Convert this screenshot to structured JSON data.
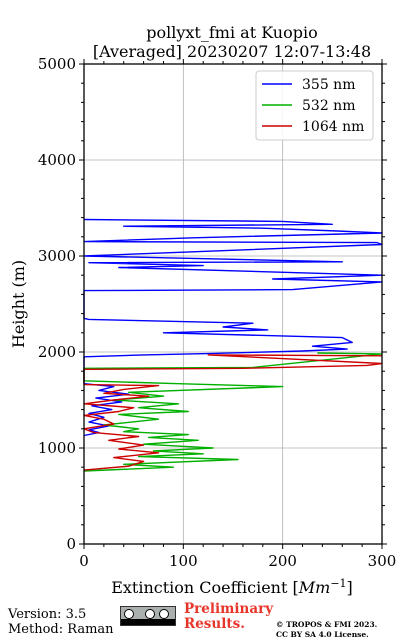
{
  "chart_data": {
    "type": "line",
    "title": [
      "pollyxt_fmi at Kuopio",
      "[Averaged] 20230207 12:07-13:48"
    ],
    "xlabel": "Extinction Coefficient [Mm⁻¹]",
    "xlabel_main": "Extinction Coefficient [",
    "xlabel_unit": "Mm",
    "xlabel_exp": "−1",
    "xlabel_close": "]",
    "ylabel": "Height (m)",
    "xlim": [
      0,
      300
    ],
    "ylim": [
      0,
      5000
    ],
    "xticks": [
      0,
      100,
      200,
      300
    ],
    "yticks": [
      0,
      1000,
      2000,
      3000,
      4000,
      5000
    ],
    "xtick_labels": [
      "0",
      "100",
      "200",
      "300"
    ],
    "ytick_labels": [
      "0",
      "1000",
      "2000",
      "3000",
      "4000",
      "5000"
    ],
    "grid": true,
    "legend_position": "top-right",
    "series": [
      {
        "name": "355 nm",
        "color": "#0000ff",
        "points": [
          [
            0,
            1130
          ],
          [
            15,
            1160
          ],
          [
            5,
            1190
          ],
          [
            25,
            1230
          ],
          [
            5,
            1270
          ],
          [
            20,
            1320
          ],
          [
            5,
            1360
          ],
          [
            28,
            1400
          ],
          [
            8,
            1440
          ],
          [
            38,
            1480
          ],
          [
            12,
            1520
          ],
          [
            45,
            1560
          ],
          [
            15,
            1600
          ],
          [
            30,
            1640
          ],
          [
            0,
            1670
          ],
          [
            0,
            1950
          ],
          [
            60,
            1970
          ],
          [
            130,
            1985
          ],
          [
            220,
            2010
          ],
          [
            265,
            2030
          ],
          [
            230,
            2060
          ],
          [
            270,
            2100
          ],
          [
            260,
            2150
          ],
          [
            80,
            2200
          ],
          [
            185,
            2230
          ],
          [
            140,
            2260
          ],
          [
            170,
            2300
          ],
          [
            5,
            2340
          ],
          [
            0,
            2350
          ],
          [
            0,
            2640
          ],
          [
            210,
            2650
          ],
          [
            300,
            2730
          ],
          [
            190,
            2760
          ],
          [
            300,
            2800
          ],
          [
            35,
            2880
          ],
          [
            120,
            2900
          ],
          [
            5,
            2930
          ],
          [
            260,
            2940
          ],
          [
            0,
            3000
          ],
          [
            300,
            3120
          ],
          [
            295,
            3140
          ],
          [
            0,
            3150
          ],
          [
            110,
            3190
          ],
          [
            300,
            3240
          ],
          [
            255,
            3260
          ],
          [
            180,
            3290
          ],
          [
            40,
            3310
          ],
          [
            250,
            3330
          ],
          [
            200,
            3360
          ],
          [
            0,
            3380
          ]
        ]
      },
      {
        "name": "532 nm",
        "color": "#00b000",
        "points": [
          [
            0,
            760
          ],
          [
            90,
            800
          ],
          [
            40,
            830
          ],
          [
            155,
            880
          ],
          [
            55,
            910
          ],
          [
            120,
            940
          ],
          [
            70,
            970
          ],
          [
            130,
            1000
          ],
          [
            60,
            1040
          ],
          [
            115,
            1080
          ],
          [
            65,
            1110
          ],
          [
            105,
            1140
          ],
          [
            40,
            1170
          ],
          [
            55,
            1200
          ],
          [
            20,
            1240
          ],
          [
            75,
            1300
          ],
          [
            35,
            1350
          ],
          [
            105,
            1380
          ],
          [
            55,
            1420
          ],
          [
            95,
            1460
          ],
          [
            30,
            1500
          ],
          [
            80,
            1540
          ],
          [
            45,
            1580
          ],
          [
            200,
            1640
          ],
          [
            95,
            1670
          ],
          [
            0,
            1700
          ],
          [
            0,
            1830
          ],
          [
            170,
            1840
          ],
          [
            300,
            1980
          ],
          [
            235,
            1990
          ]
        ]
      },
      {
        "name": "1064 nm",
        "color": "#cc0000",
        "points": [
          [
            0,
            770
          ],
          [
            45,
            810
          ],
          [
            60,
            860
          ],
          [
            30,
            900
          ],
          [
            75,
            950
          ],
          [
            35,
            990
          ],
          [
            60,
            1030
          ],
          [
            25,
            1080
          ],
          [
            55,
            1120
          ],
          [
            10,
            1160
          ],
          [
            0,
            1200
          ],
          [
            30,
            1250
          ],
          [
            20,
            1300
          ],
          [
            0,
            1340
          ],
          [
            35,
            1380
          ],
          [
            50,
            1420
          ],
          [
            0,
            1460
          ],
          [
            30,
            1500
          ],
          [
            65,
            1540
          ],
          [
            20,
            1570
          ],
          [
            40,
            1610
          ],
          [
            75,
            1650
          ],
          [
            0,
            1660
          ],
          [
            0,
            1820
          ],
          [
            160,
            1830
          ],
          [
            285,
            1860
          ],
          [
            300,
            1880
          ],
          [
            125,
            1970
          ],
          [
            300,
            1960
          ]
        ]
      }
    ]
  },
  "footer": {
    "version": "Version: 3.5",
    "method": "Method: Raman",
    "preliminary_line1": "Preliminary",
    "preliminary_line2": "Results.",
    "copyright_line1": "© TROPOS & FMI 2023.",
    "copyright_line2": "CC BY SA 4.0 License."
  }
}
